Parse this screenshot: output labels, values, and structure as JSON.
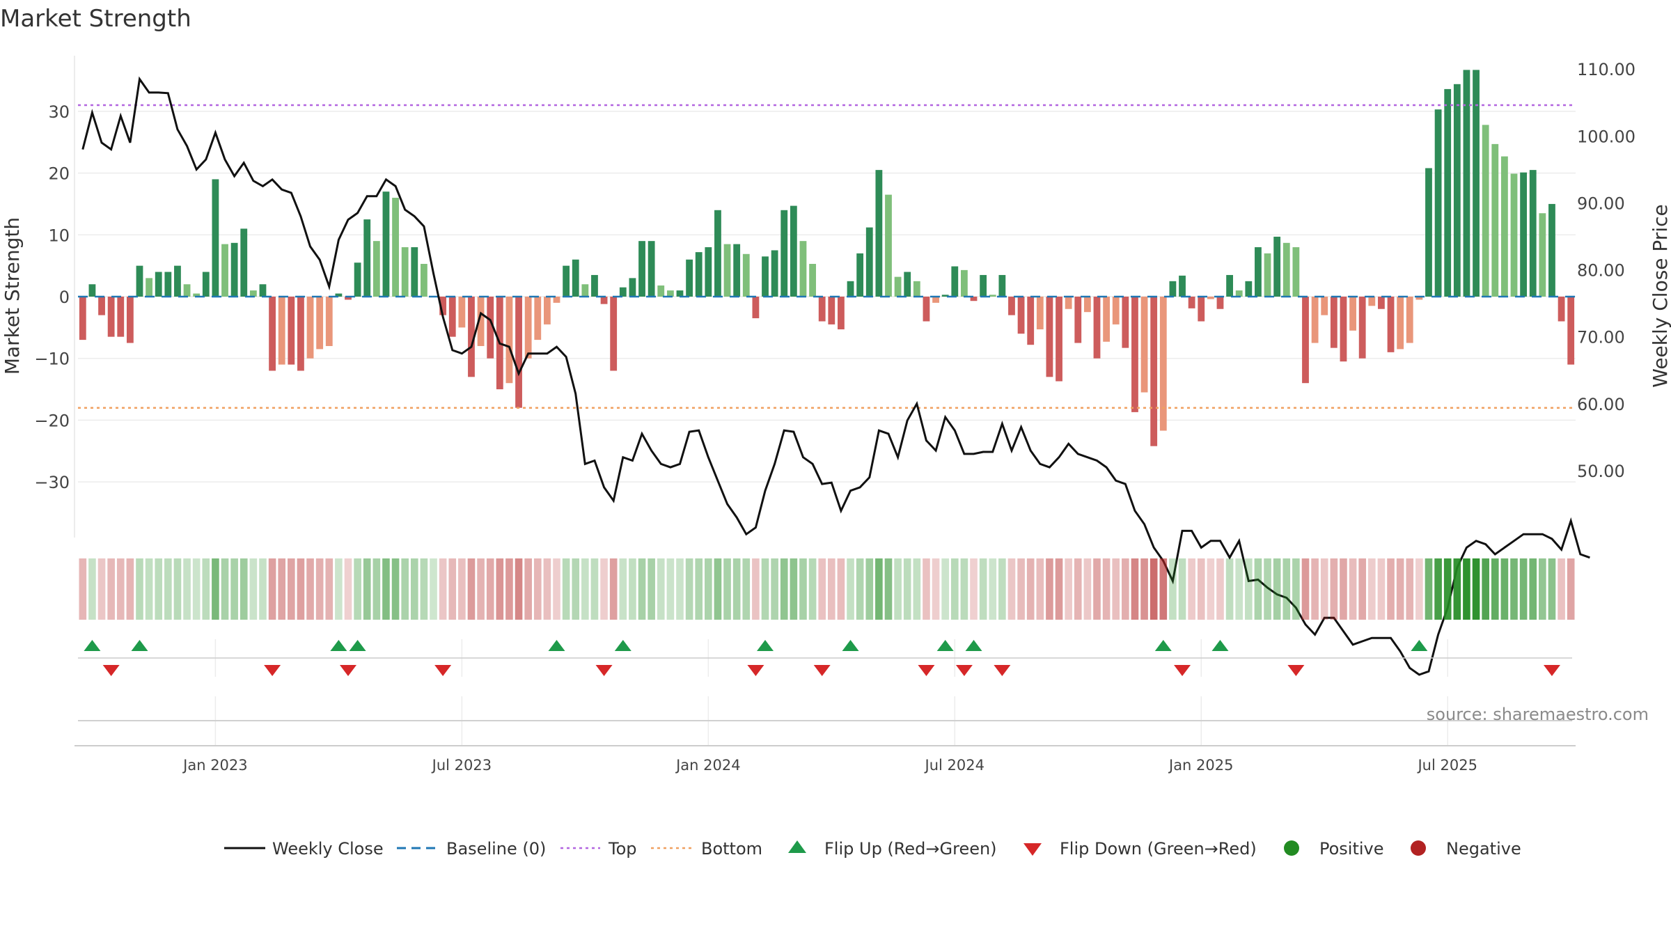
{
  "title": "Market Strength",
  "source": "source: sharemaestro.com",
  "chart_data": {
    "type": "bar",
    "y_left_label": "Market Strength",
    "y_right_label": "Weekly Close Price",
    "y_left_ticks": [
      "30",
      "20",
      "10",
      "0",
      "−10",
      "−20",
      "−30"
    ],
    "y_right_ticks": [
      "110.00",
      "100.00",
      "90.00",
      "80.00",
      "70.00",
      "60.00",
      "50.00"
    ],
    "y_left_range": [
      -39,
      39
    ],
    "y_right_range": [
      40,
      112
    ],
    "x_ticks": [
      "Jan 2023",
      "Jul 2023",
      "Jan 2024",
      "Jul 2024",
      "Jan 2025",
      "Jul 2025"
    ],
    "x_tick_weeks": [
      14.5,
      40.5,
      66.5,
      92.5,
      118.5,
      144.5
    ],
    "top_level": 31,
    "bottom_level": -18,
    "strength": [
      -7,
      2,
      -3,
      -6.5,
      -6.5,
      -7.5,
      5,
      3,
      4,
      4,
      5,
      2,
      0.5,
      4,
      19,
      8.5,
      8.7,
      11,
      1,
      2,
      -12,
      -11,
      -11,
      -12,
      -10,
      -8.5,
      -8,
      0.5,
      -0.5,
      5.5,
      12.5,
      9,
      17,
      16,
      8,
      8,
      5.3,
      0,
      -3,
      -6.5,
      -5,
      -13,
      -8,
      -10,
      -15,
      -14,
      -18,
      -10,
      -7,
      -4.5,
      -1,
      5,
      6,
      2,
      3.5,
      -1.2,
      -12,
      1.5,
      3,
      9,
      9,
      1.8,
      1,
      1,
      6,
      7.2,
      8,
      14,
      8.5,
      8.5,
      6.9,
      -3.5,
      6.5,
      7.5,
      14,
      14.7,
      9,
      5.3,
      -4,
      -4.5,
      -5.3,
      2.5,
      7,
      11.2,
      20.5,
      16.5,
      3.2,
      4,
      2.5,
      -4,
      -1,
      0.3,
      4.9,
      4.3,
      -0.7,
      3.5,
      0.3,
      3.5,
      -3,
      -6,
      -7.8,
      -5.3,
      -13,
      -13.7,
      -2,
      -7.5,
      -2.5,
      -10,
      -7.3,
      -4.5,
      -8.3,
      -18.7,
      -15.5,
      -24.2,
      -21.7,
      2.5,
      3.4,
      -1.9,
      -4,
      -0.4,
      -2,
      3.5,
      1,
      2.5,
      8,
      7,
      9.7,
      8.7,
      8,
      -14,
      -7.5,
      -3,
      -8.3,
      -10.5,
      -5.5,
      -10,
      -1.5,
      -2,
      -9,
      -8.5,
      -7.5,
      -0.5,
      20.8,
      30.3,
      33.6,
      34.4,
      36.7,
      36.7,
      27.8,
      24.7,
      22.7,
      19.9,
      20.1,
      20.5,
      13.5,
      15,
      -4,
      -11
    ],
    "weekly_close": [
      98,
      103.5,
      99,
      98,
      103,
      99,
      108.5,
      106.5,
      106.5,
      106.4,
      101,
      98.5,
      95,
      96.5,
      100.5,
      96.5,
      94,
      96,
      93.3,
      92.5,
      93.5,
      92,
      91.5,
      88,
      83.5,
      81.5,
      77.5,
      84.5,
      87.5,
      88.5,
      91,
      91,
      93.5,
      92.5,
      89,
      88,
      86.5,
      79.5,
      73,
      68,
      67.5,
      68.5,
      73.5,
      72.5,
      69,
      68.5,
      64.5,
      67.5,
      67.5,
      67.5,
      68.5,
      67,
      61.5,
      51,
      51.5,
      47.5,
      45.5,
      52,
      51.5,
      55.5,
      53,
      51,
      50.5,
      51,
      55.8,
      56,
      52,
      48.5,
      45,
      43,
      40.5,
      41.5,
      47,
      51,
      56,
      55.8,
      52,
      51,
      48,
      48.2,
      44,
      47,
      47.5,
      49,
      56,
      55.5,
      52,
      57.5,
      60,
      54.5,
      53,
      58,
      56,
      52.5,
      52.5,
      52.8,
      52.8,
      57,
      53,
      56.5,
      53,
      51,
      50.5,
      52,
      54,
      52.5,
      52,
      51.5,
      50.5,
      48.5,
      48,
      44,
      42,
      38.5,
      36.5,
      33.5,
      41,
      41,
      38.5,
      39.5,
      39.5,
      37,
      39.5,
      33.5,
      33.7,
      32.5,
      31.5,
      31,
      29.5,
      27,
      25.5,
      28,
      28,
      26,
      24,
      24.5,
      25,
      25,
      25,
      23,
      20.5,
      19.5,
      20,
      25.5,
      29.5,
      35.5,
      38.5,
      39.5,
      39,
      37.5,
      38.5,
      39.5,
      40.5,
      40.5,
      40.5,
      39.8,
      38.2,
      42.5,
      37.5,
      37
    ],
    "flip_up_weeks": [
      1,
      6,
      27,
      29,
      50,
      57,
      72,
      81,
      91,
      94,
      114,
      120,
      141
    ],
    "flip_down_weeks": [
      3,
      20,
      28,
      38,
      55,
      71,
      78,
      89,
      93,
      97,
      116,
      128,
      155
    ]
  },
  "legend": {
    "weekly_close": "Weekly Close",
    "baseline": "Baseline (0)",
    "top": "Top",
    "bottom": "Bottom",
    "flip_up": "Flip Up (Red→Green)",
    "flip_down": "Flip Down (Green→Red)",
    "positive": "Positive",
    "negative": "Negative"
  },
  "colors": {
    "bar_strong_green": "#2e8b57",
    "bar_light_green": "#7fbf7a",
    "bar_strong_red": "#cd5c5c",
    "bar_light_red": "#e9967a",
    "close_line": "#111111",
    "baseline": "#1f77b4",
    "top_line": "#b266e0",
    "bottom_line": "#f0a060",
    "flip_up": "#1e9a4a",
    "flip_down": "#d62728",
    "positive_dot": "#228b22",
    "negative_dot": "#b22222"
  }
}
